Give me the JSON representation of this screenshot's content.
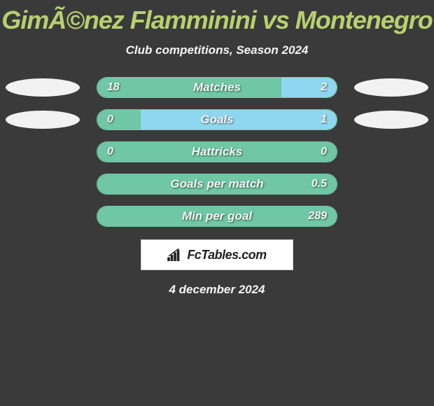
{
  "title": "GimÃ©nez Flamminini vs Montenegro",
  "subtitle": "Club competitions, Season 2024",
  "date": "4 december 2024",
  "brand": "FcTables.com",
  "colors": {
    "title": "#b8d070",
    "text": "#f5f5f5",
    "background": "#3a3a3a",
    "ellipse_left_1": "#f2f2f2",
    "ellipse_left_2": "#f2f2f2",
    "ellipse_right_1": "#f2f2f2",
    "ellipse_right_2": "#f2f2f2",
    "bar_left": "#6fc7a5",
    "bar_right": "#8fd7ee",
    "bar_empty": "#3a3a3a",
    "bar_border": "#6fc7a5"
  },
  "rows": [
    {
      "label": "Matches",
      "left_val": "18",
      "right_val": "2",
      "left_pct": 77,
      "right_pct": 23,
      "left_color": "#6fc7a5",
      "right_color": "#8fd7ee",
      "show_ellipse": true
    },
    {
      "label": "Goals",
      "left_val": "0",
      "right_val": "1",
      "left_pct": 18,
      "right_pct": 82,
      "left_color": "#6fc7a5",
      "right_color": "#8fd7ee",
      "show_ellipse": true
    },
    {
      "label": "Hattricks",
      "left_val": "0",
      "right_val": "0",
      "left_pct": 100,
      "right_pct": 0,
      "left_color": "#6fc7a5",
      "right_color": "#8fd7ee",
      "show_ellipse": false
    },
    {
      "label": "Goals per match",
      "left_val": "",
      "right_val": "0.5",
      "left_pct": 100,
      "right_pct": 0,
      "left_color": "#6fc7a5",
      "right_color": "#8fd7ee",
      "show_ellipse": false
    },
    {
      "label": "Min per goal",
      "left_val": "",
      "right_val": "289",
      "left_pct": 100,
      "right_pct": 0,
      "left_color": "#6fc7a5",
      "right_color": "#8fd7ee",
      "show_ellipse": false
    }
  ]
}
